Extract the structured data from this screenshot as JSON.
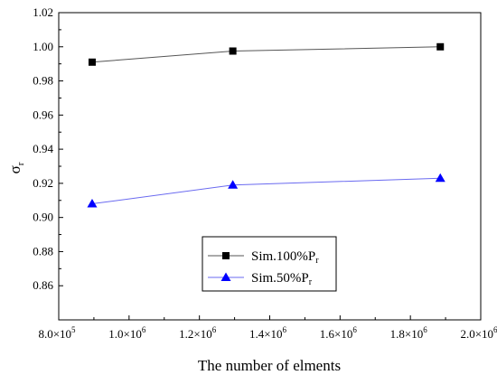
{
  "chart_data": {
    "type": "line",
    "title": "",
    "xlabel": "The number of elments",
    "ylabel": "σr",
    "ylabel_main": "σ",
    "ylabel_sub": "r",
    "xlim": [
      800000,
      2000000
    ],
    "ylim": [
      0.84,
      1.02
    ],
    "x_ticks": [
      800000,
      1000000,
      1200000,
      1400000,
      1600000,
      1800000,
      2000000
    ],
    "x_tick_mantissas": [
      "8.0×10",
      "1.0×10",
      "1.2×10",
      "1.4×10",
      "1.6×10",
      "1.8×10",
      "2.0×10"
    ],
    "x_tick_exponents": [
      "5",
      "6",
      "6",
      "6",
      "6",
      "6",
      "6"
    ],
    "y_ticks": [
      0.86,
      0.88,
      0.9,
      0.92,
      0.94,
      0.96,
      0.98,
      1.0,
      1.02
    ],
    "y_tick_labels": [
      "0.86",
      "0.88",
      "0.90",
      "0.92",
      "0.94",
      "0.96",
      "0.98",
      "1.00",
      "1.02"
    ],
    "grid": false,
    "legend_position": "bottom-center",
    "series": [
      {
        "name": "Sim.100%Pr",
        "name_main": "Sim.100%P",
        "name_sub": "r",
        "marker": "square",
        "color": "#000000",
        "line_color": "#555555",
        "x": [
          895000,
          1295000,
          1885000
        ],
        "y": [
          0.991,
          0.9975,
          1.0
        ]
      },
      {
        "name": "Sim.50%Pr",
        "name_main": "Sim.50%P",
        "name_sub": "r",
        "marker": "triangle",
        "color": "#0000ff",
        "line_color": "#6a6af0",
        "x": [
          895000,
          1295000,
          1885000
        ],
        "y": [
          0.908,
          0.919,
          0.923
        ]
      }
    ]
  }
}
